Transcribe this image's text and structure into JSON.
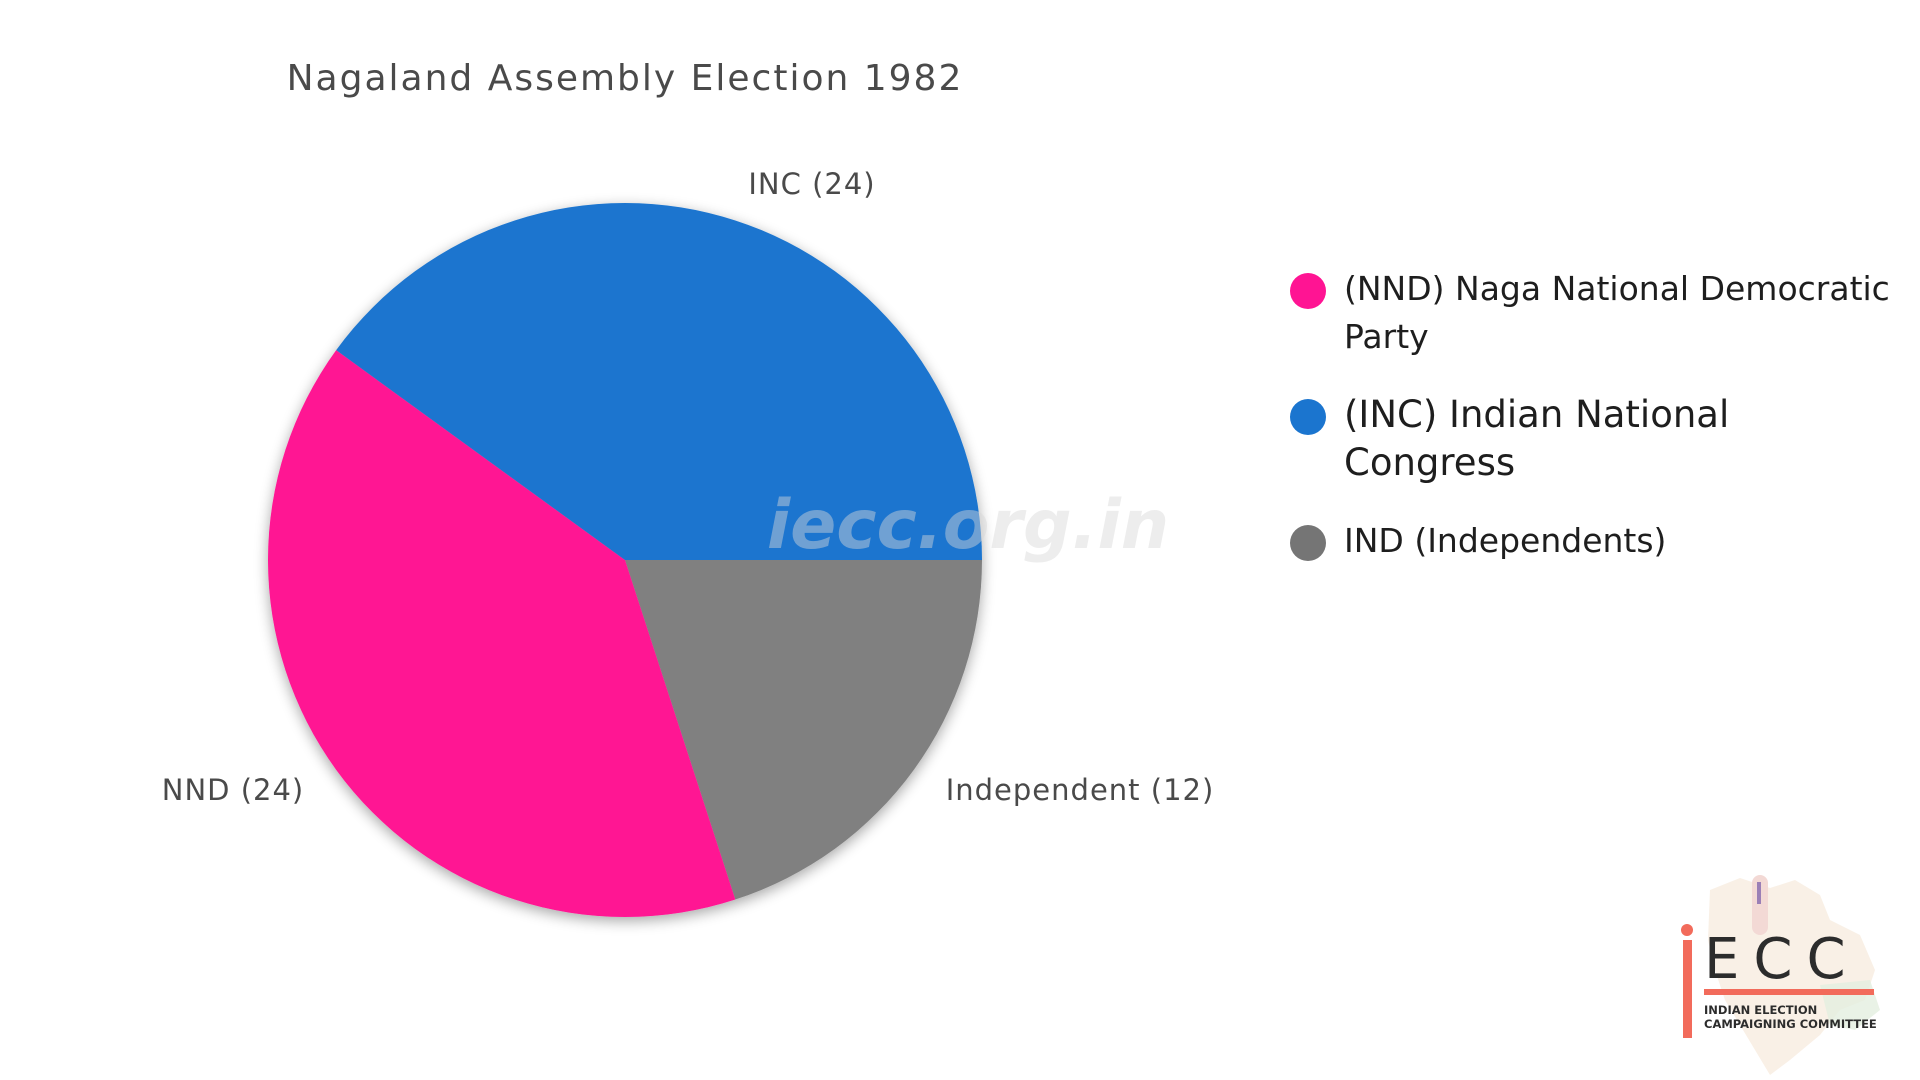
{
  "chart_data": {
    "type": "pie",
    "title": "Nagaland Assembly Election 1982",
    "slices": [
      {
        "key": "inc",
        "label": "INC (24)",
        "value": 24,
        "color": "#1b75cf"
      },
      {
        "key": "nnd",
        "label": "NND (24)",
        "value": 24,
        "color": "#ff1493"
      },
      {
        "key": "ind",
        "label": "Independent (12)",
        "value": 12,
        "color": "#808080"
      }
    ],
    "legend": {
      "placement": "right",
      "items": [
        {
          "label": "(NND) Naga National Democratic Party",
          "color": "#ff1493"
        },
        {
          "label": "(INC) Indian National Congress",
          "color": "#1b75cf"
        },
        {
          "label": "IND (Independents)",
          "color": "#757575"
        }
      ]
    }
  },
  "watermark": "iecc.org.in",
  "logo": {
    "letters": "ECC",
    "line1": "INDIAN ELECTION",
    "line2": "CAMPAIGNING COMMITTEE",
    "accent_color": "#f26b5b"
  }
}
